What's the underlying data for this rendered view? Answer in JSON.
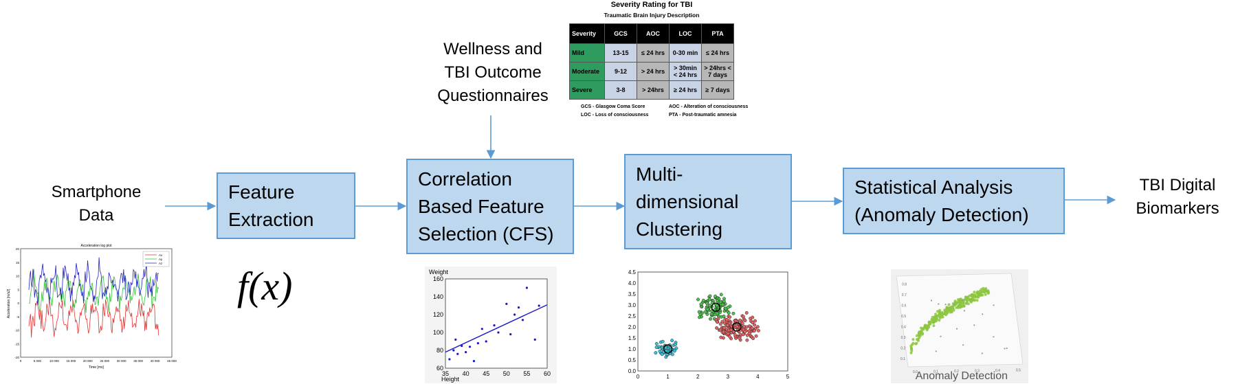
{
  "inputs": {
    "smartphone": [
      "Smartphone",
      "Data"
    ],
    "questionnaires": [
      "Wellness and",
      "TBI Outcome",
      "Questionnaires"
    ],
    "output": [
      "TBI Digital",
      "Biomarkers"
    ]
  },
  "boxes": [
    {
      "id": "feature-extraction",
      "lines": [
        "Feature",
        "Extraction"
      ]
    },
    {
      "id": "cfs",
      "lines": [
        "Correlation",
        "Based Feature",
        "Selection (CFS)"
      ]
    },
    {
      "id": "clustering",
      "lines": [
        "Multi-",
        "dimensional",
        "Clustering"
      ]
    },
    {
      "id": "statistical-analysis",
      "lines": [
        "Statistical Analysis",
        "(Anomaly Detection)"
      ]
    }
  ],
  "formula": "f(x)",
  "severity_table": {
    "title": "Severity Rating for TBI",
    "subtitle": "Traumatic Brain Injury Description",
    "header": [
      "Severity",
      "GCS",
      "AOC",
      "LOC",
      "PTA"
    ],
    "rows": [
      [
        "Mild",
        "13-15",
        "≤ 24 hrs",
        "0-30 min",
        "≤ 24 hrs"
      ],
      [
        "Moderate",
        "9-12",
        "> 24 hrs",
        "> 30min < 24 hrs",
        "> 24hrs < 7 days"
      ],
      [
        "Severe",
        "3-8",
        "> 24hrs",
        "≥ 24 hrs",
        "≥ 7 days"
      ]
    ],
    "notes": [
      "GCS - Glasgow Coma Score",
      "AOC - Alteration of consciousness",
      "LOC - Loss of consciousness",
      "PTA - Post-traumatic amnesia"
    ]
  },
  "accel_plot": {
    "title": "Acceleration log plot",
    "xlabel": "Time [ms]",
    "ylabel": "Acceleration [m/s2]",
    "legend": [
      "Ax",
      "Ay",
      "Az"
    ],
    "colors": [
      "#e03030",
      "#30c030",
      "#2020c0"
    ],
    "xticks": [
      "0",
      "5 000",
      "10 000",
      "15 000",
      "20 000",
      "25 000",
      "30 000",
      "35 000",
      "40 000",
      "45 000"
    ],
    "yticks": [
      "20",
      "15",
      "10",
      "5",
      "0",
      "-5",
      "-10",
      "-15",
      "-20"
    ]
  },
  "chart_data": [
    {
      "type": "scatter",
      "ylabel": "Weight",
      "xlabel": "Height",
      "xlim": [
        35,
        60
      ],
      "ylim": [
        60,
        160
      ],
      "xticks": [
        35,
        40,
        45,
        50,
        55,
        60
      ],
      "yticks": [
        60,
        80,
        100,
        120,
        140,
        160
      ],
      "points": [
        [
          36,
          70
        ],
        [
          37,
          80
        ],
        [
          37.5,
          92
        ],
        [
          38,
          76
        ],
        [
          39,
          85
        ],
        [
          40,
          78
        ],
        [
          41,
          84
        ],
        [
          42,
          68
        ],
        [
          43,
          88
        ],
        [
          44,
          104
        ],
        [
          45,
          90
        ],
        [
          47,
          108
        ],
        [
          48,
          100
        ],
        [
          50,
          132
        ],
        [
          51,
          98
        ],
        [
          52,
          120
        ],
        [
          53,
          128
        ],
        [
          54,
          114
        ],
        [
          55,
          150
        ],
        [
          57,
          92
        ],
        [
          58,
          130
        ]
      ],
      "trendline": [
        [
          35,
          78
        ],
        [
          60,
          131
        ]
      ],
      "color": "#1818c8"
    },
    {
      "type": "scatter",
      "xlim": [
        0,
        5
      ],
      "ylim": [
        0,
        4.5
      ],
      "xticks": [
        0,
        1,
        2,
        3,
        4,
        5
      ],
      "yticks": [
        0.0,
        0.5,
        1.0,
        1.5,
        2.0,
        2.5,
        3.0,
        3.5,
        4.0,
        4.5
      ],
      "clusters": [
        {
          "center": [
            1.0,
            1.0
          ],
          "spread": [
            0.25,
            0.22
          ],
          "n": 60,
          "color": "#3fc0d8"
        },
        {
          "center": [
            2.6,
            2.9
          ],
          "spread": [
            0.35,
            0.35
          ],
          "n": 110,
          "color": "#50c050"
        },
        {
          "center": [
            3.3,
            2.0
          ],
          "spread": [
            0.45,
            0.4
          ],
          "n": 150,
          "color": "#e06464"
        }
      ]
    },
    {
      "type": "scatter",
      "caption": "Anomaly Detection",
      "xticks": [
        "0.0",
        "0.1",
        "0.2",
        "0.3",
        "0.4",
        "0.5"
      ],
      "yticks": [
        "0.1",
        "0.2",
        "0.3",
        "0.4",
        "0.5",
        "0.6",
        "0.7",
        "0.8"
      ],
      "color": "#8cc63f"
    }
  ],
  "colors": {
    "box_fill": "#bdd7ee",
    "box_border": "#5b9bd5",
    "arrow": "#5b9bd5"
  }
}
